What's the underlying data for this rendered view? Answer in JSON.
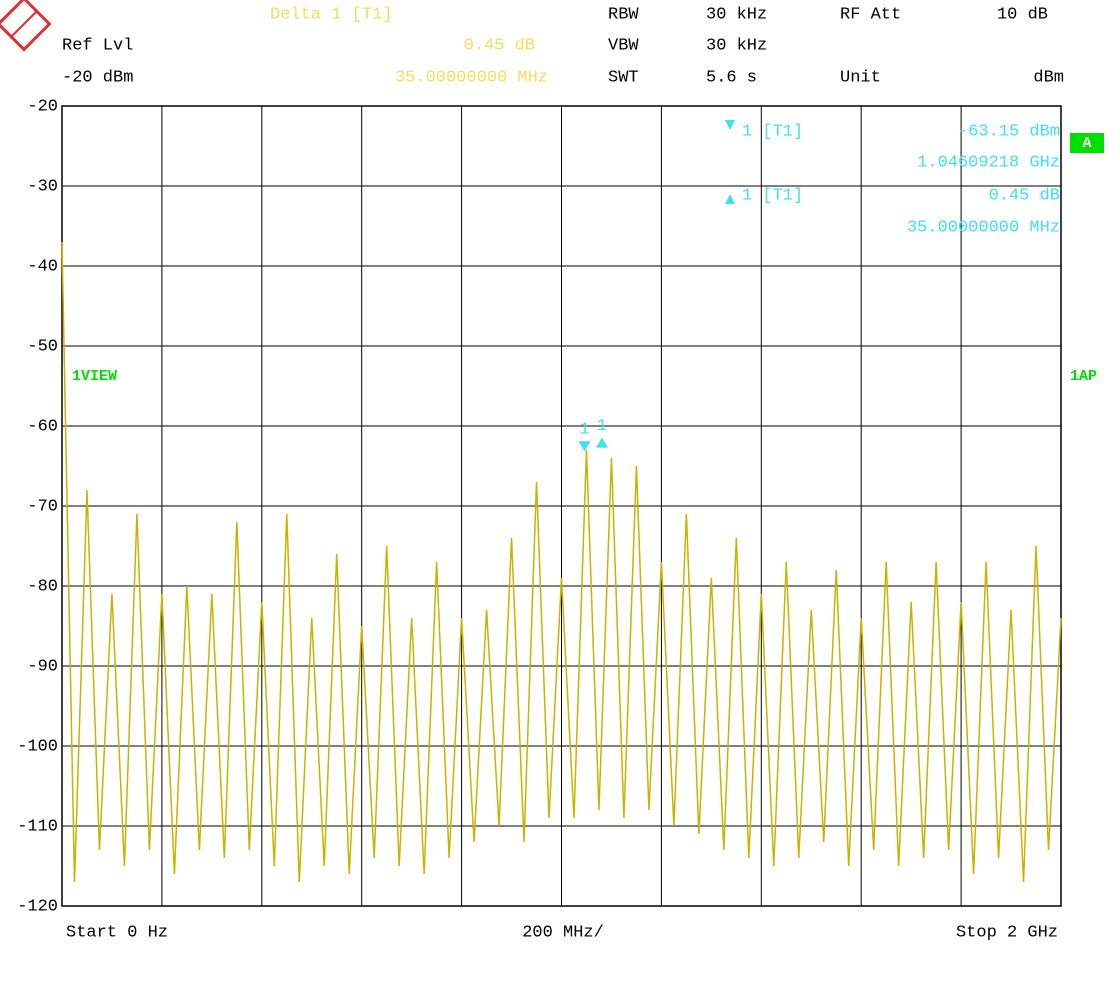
{
  "header": {
    "delta_title": "Delta 1 [T1]",
    "delta_level": "0.45 dB",
    "delta_freq": "35.00000000 MHz",
    "ref_label": "Ref Lvl",
    "ref_value": "-20 dBm",
    "rbw_label": "RBW",
    "rbw_value": "30 kHz",
    "vbw_label": "VBW",
    "vbw_value": "30 kHz",
    "swt_label": "SWT",
    "swt_value": "5.6 s",
    "att_label": "RF Att",
    "att_value": "10 dB",
    "unit_label": "Unit",
    "unit_value": "dBm"
  },
  "marker_info": {
    "m1_name": "1 [T1]",
    "m1_level": "-63.15 dBm",
    "m1_freq": "1.04609218 GHz",
    "d1_name": "1 [T1]",
    "d1_level": "0.45 dB",
    "d1_freq": "35.00000000 MHz"
  },
  "side": {
    "view": "1VIEW",
    "trace_tag": "A",
    "detector": "1AP"
  },
  "footer": {
    "start": "Start 0 Hz",
    "span": "200 MHz/",
    "stop": "Stop 2 GHz"
  },
  "chart_data": {
    "type": "line",
    "color": "#c8b400",
    "grid": true,
    "xlim": [
      0,
      2000
    ],
    "xticks": [
      0,
      200,
      400,
      600,
      800,
      1000,
      1200,
      1400,
      1600,
      1800,
      2000
    ],
    "ylim": [
      -120,
      -20
    ],
    "yticks": [
      -20,
      -30,
      -40,
      -50,
      -60,
      -70,
      -80,
      -90,
      -100,
      -110,
      -120
    ],
    "x": [
      0,
      25,
      50,
      75,
      100,
      125,
      150,
      175,
      200,
      225,
      250,
      275,
      300,
      325,
      350,
      375,
      400,
      425,
      450,
      475,
      500,
      525,
      550,
      575,
      600,
      625,
      650,
      675,
      700,
      725,
      750,
      775,
      800,
      825,
      850,
      875,
      900,
      925,
      950,
      975,
      1000,
      1025,
      1050,
      1075,
      1100,
      1125,
      1150,
      1175,
      1200,
      1225,
      1250,
      1275,
      1300,
      1325,
      1350,
      1375,
      1400,
      1425,
      1450,
      1475,
      1500,
      1525,
      1550,
      1575,
      1600,
      1625,
      1650,
      1675,
      1700,
      1725,
      1750,
      1775,
      1800,
      1825,
      1850,
      1875,
      1900,
      1925,
      1950,
      1975,
      2000
    ],
    "values": [
      -37,
      -117,
      -68,
      -113,
      -81,
      -115,
      -71,
      -113,
      -81,
      -116,
      -80,
      -113,
      -81,
      -114,
      -72,
      -113,
      -82,
      -115,
      -71,
      -117,
      -84,
      -115,
      -76,
      -116,
      -85,
      -114,
      -75,
      -115,
      -84,
      -116,
      -77,
      -114,
      -84,
      -112,
      -83,
      -110,
      -74,
      -112,
      -67,
      -109,
      -79,
      -109,
      -63,
      -108,
      -64,
      -109,
      -65,
      -108,
      -77,
      -110,
      -71,
      -111,
      -79,
      -113,
      -74,
      -114,
      -81,
      -115,
      -77,
      -114,
      -83,
      -112,
      -78,
      -115,
      -84,
      -113,
      -77,
      -115,
      -82,
      -114,
      -77,
      -113,
      -82,
      -116,
      -77,
      -114,
      -83,
      -117,
      -75,
      -113,
      -84
    ],
    "markers": [
      {
        "label": "1",
        "x": 1046.09218,
        "y": -63.15
      },
      {
        "label": "1",
        "x": 1081.09218,
        "y": -62.7
      }
    ]
  }
}
